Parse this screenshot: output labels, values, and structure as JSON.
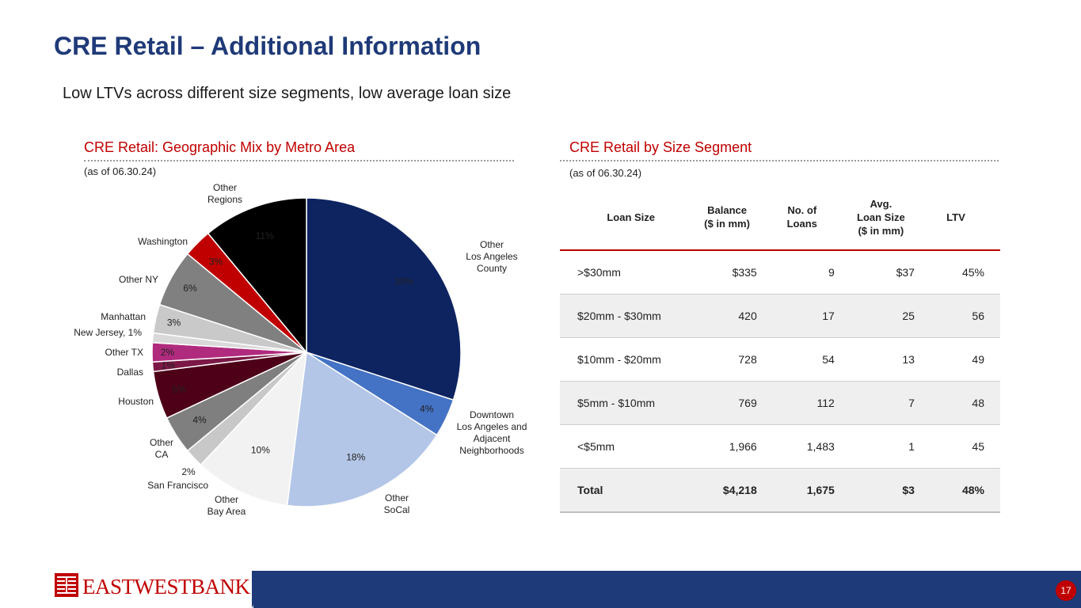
{
  "title": "CRE Retail – Additional Information",
  "subtitle": "Low LTVs across different size segments, low average loan size",
  "left_section": {
    "title": "CRE Retail: Geographic Mix by Metro Area",
    "asof": "(as of 06.30.24)"
  },
  "right_section": {
    "title": "CRE Retail by Size Segment",
    "asof": "(as of 06.30.24)"
  },
  "colors": {
    "accent_red": "#c00000",
    "brand_blue": "#1f3a78"
  },
  "chart_data": {
    "type": "pie",
    "title": "CRE Retail: Geographic Mix by Metro Area",
    "start": "12 o'clock, clockwise",
    "slices": [
      {
        "label": [
          "Other",
          "Los Angeles",
          "County"
        ],
        "value": 30,
        "pct": "30%",
        "color": "#0e2461",
        "pctColor": "#ffffff"
      },
      {
        "label": [
          "Downtown",
          "Los Angeles and",
          "Adjacent",
          "Neighborhoods"
        ],
        "value": 4,
        "pct": "4%",
        "color": "#4472c4",
        "pctColor": "#ffffff"
      },
      {
        "label": [
          "Other",
          "SoCal"
        ],
        "value": 18,
        "pct": "18%",
        "color": "#b4c6e7",
        "pctColor": "#222222"
      },
      {
        "label": [
          "Other",
          "Bay Area"
        ],
        "value": 10,
        "pct": "10%",
        "color": "#f2f2f2",
        "pctColor": "#222222"
      },
      {
        "label": [
          "San Francisco"
        ],
        "value": 2,
        "pct": "2%",
        "color": "#c8c8c8",
        "pctColor": "#222222"
      },
      {
        "label": [
          "Other",
          "CA"
        ],
        "value": 4,
        "pct": "4%",
        "color": "#7f7f7f",
        "pctColor": "#ffffff"
      },
      {
        "label": [
          "Houston"
        ],
        "value": 5,
        "pct": "5%",
        "color": "#4d0018",
        "pctColor": "#ffffff"
      },
      {
        "label": [
          "Dallas"
        ],
        "value": 1,
        "pct": "1%",
        "color": "#7b1846",
        "pctColor": "#ffffff"
      },
      {
        "label": [
          "Other TX"
        ],
        "value": 2,
        "pct": "2%",
        "color": "#b02b7e",
        "pctColor": "#ffffff"
      },
      {
        "label": [
          "New Jersey, 1%"
        ],
        "value": 1,
        "pct": "",
        "color": "#d9d9d9",
        "pctColor": "#222222"
      },
      {
        "label": [
          "Manhattan"
        ],
        "value": 3,
        "pct": "3%",
        "color": "#c9c9c9",
        "pctColor": "#222222"
      },
      {
        "label": [
          "Other NY"
        ],
        "value": 6,
        "pct": "6%",
        "color": "#808080",
        "pctColor": "#ffffff"
      },
      {
        "label": [
          "Washington"
        ],
        "value": 3,
        "pct": "3%",
        "color": "#c00000",
        "pctColor": "#ffffff"
      },
      {
        "label": [
          "Other",
          "Regions"
        ],
        "value": 11,
        "pct": "11%",
        "color": "#000000",
        "pctColor": "#ffffff"
      }
    ]
  },
  "table": {
    "headers": [
      [
        "Loan Size"
      ],
      [
        "Balance",
        "($ in mm)"
      ],
      [
        "No. of",
        "Loans"
      ],
      [
        "Avg.",
        "Loan Size",
        "($ in mm)"
      ],
      [
        "LTV"
      ]
    ],
    "rows": [
      [
        ">$30mm",
        "$335",
        "9",
        "$37",
        "45%"
      ],
      [
        "$20mm - $30mm",
        "420",
        "17",
        "25",
        "56"
      ],
      [
        "$10mm - $20mm",
        "728",
        "54",
        "13",
        "49"
      ],
      [
        "$5mm - $10mm",
        "769",
        "112",
        "7",
        "48"
      ],
      [
        "<$5mm",
        "1,966",
        "1,483",
        "1",
        "45"
      ]
    ],
    "total": [
      "Total",
      "$4,218",
      "1,675",
      "$3",
      "48%"
    ]
  },
  "footer": {
    "logo_text": "EASTWESTBANK",
    "page_number": "17"
  }
}
